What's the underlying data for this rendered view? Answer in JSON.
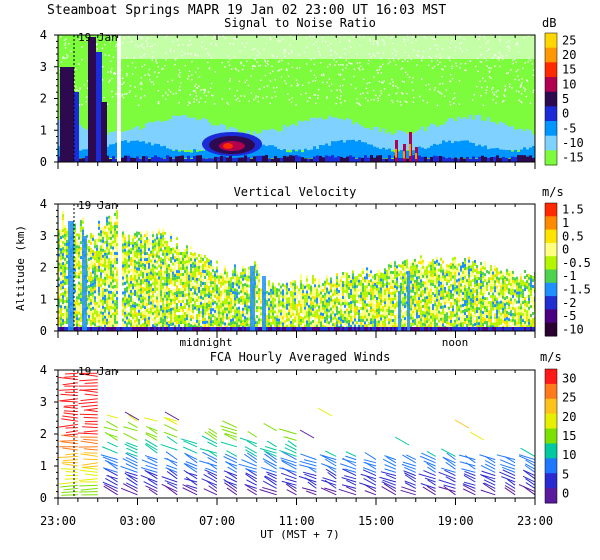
{
  "header": {
    "title_line": "Steamboat Springs  MAPR 19 Jan 02  23:00 UT  16:03  MST"
  },
  "chart_data": [
    {
      "type": "heatmap",
      "title": "Signal to Noise Ratio",
      "units": "dB",
      "ylabel": "",
      "ylim": [
        0,
        4
      ],
      "y_ticks": [
        "0",
        "1",
        "2",
        "3",
        "4"
      ],
      "date_marker": "19 Jan",
      "colorbar": {
        "labels": [
          "25",
          "20",
          "15",
          "10",
          "5",
          "0",
          "-5",
          "-10",
          "-15"
        ],
        "colors": [
          "#FFD700",
          "#FF9800",
          "#FF2A00",
          "#B0004E",
          "#2D0A4F",
          "#1C2BD8",
          "#0096FF",
          "#7FD2FF",
          "#7CFC3C"
        ]
      }
    },
    {
      "type": "heatmap",
      "title": "Vertical Velocity",
      "units": "m/s",
      "ylabel": "Altitude (km)",
      "ylim": [
        0,
        4
      ],
      "y_ticks": [
        "0",
        "1",
        "2",
        "3",
        "4"
      ],
      "date_marker": "19 Jan",
      "time_labels": [
        "midnight",
        "noon"
      ],
      "colorbar": {
        "labels": [
          "1.5",
          "1",
          "0.5",
          "0",
          "-0.5",
          "-1",
          "-1.5",
          "-2",
          "-5",
          "-10"
        ],
        "colors": [
          "#FF2A00",
          "#FF8A00",
          "#FFE400",
          "#FFFF80",
          "#B4F500",
          "#4DD24D",
          "#1E90FF",
          "#2030D0",
          "#4B0082",
          "#2A0030"
        ]
      }
    },
    {
      "type": "scatter",
      "title": "FCA Hourly Averaged Winds",
      "units": "m/s",
      "ylabel": "",
      "ylim": [
        0,
        4
      ],
      "y_ticks": [
        "0",
        "1",
        "2",
        "3",
        "4"
      ],
      "date_marker": "19 Jan",
      "xlabel": "UT  (MST + 7)",
      "x_ticks": [
        "23:00",
        "03:00",
        "07:00",
        "11:00",
        "15:00",
        "19:00",
        "23:00"
      ],
      "colorbar": {
        "labels": [
          "30",
          "25",
          "20",
          "15",
          "10",
          "5",
          "0"
        ],
        "colors": [
          "#FF1A1A",
          "#FF7A1A",
          "#FFC21A",
          "#E6F000",
          "#7CE000",
          "#00C8A0",
          "#1E78FF",
          "#2A2AD0",
          "#5A1A9E"
        ]
      }
    }
  ]
}
